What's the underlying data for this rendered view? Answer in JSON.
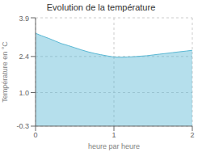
{
  "chart_data": {
    "type": "area",
    "title": "Evolution de la température",
    "xlabel": "heure par heure",
    "ylabel": "Température en °C",
    "x": [
      0.0,
      0.08,
      0.17,
      0.25,
      0.33,
      0.42,
      0.5,
      0.58,
      0.67,
      0.75,
      0.83,
      0.92,
      1.0,
      1.08,
      1.17,
      1.25,
      1.33,
      1.42,
      1.5,
      1.58,
      1.67,
      1.75,
      1.83,
      1.92,
      2.0
    ],
    "values": [
      3.3,
      3.2,
      3.1,
      3.0,
      2.9,
      2.82,
      2.74,
      2.66,
      2.58,
      2.52,
      2.47,
      2.42,
      2.38,
      2.37,
      2.38,
      2.39,
      2.41,
      2.43,
      2.46,
      2.49,
      2.52,
      2.55,
      2.58,
      2.61,
      2.64
    ],
    "color": "#5ab8d4",
    "xlim": [
      0,
      2
    ],
    "ylim": [
      -0.3,
      3.9
    ],
    "xticks": [
      0,
      1,
      2
    ],
    "yticks": [
      -0.3,
      {
        "value": 1.0,
        "label": "1.0"
      },
      2.4,
      3.9
    ],
    "grid": true
  }
}
